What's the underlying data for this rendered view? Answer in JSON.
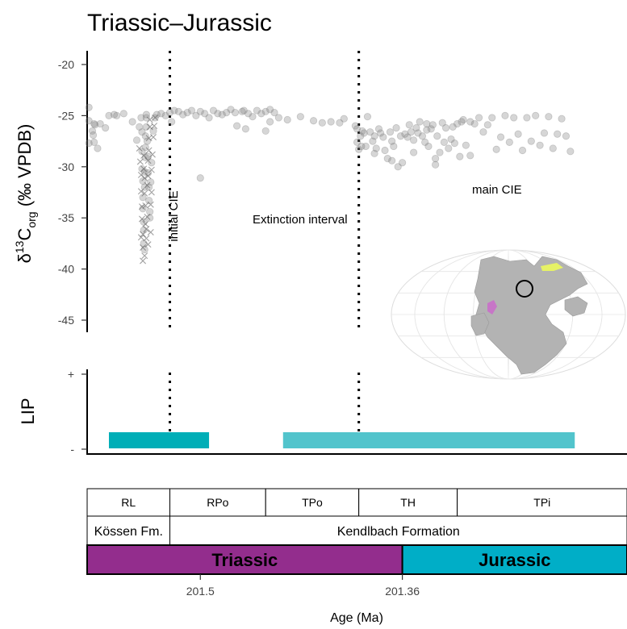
{
  "chart_data": {
    "type": "scatter",
    "title": "Triassic–Jurassic",
    "ylabel": {
      "delta": "δ",
      "sup": "13",
      "main": "C",
      "sub": "org",
      "unit": "(‰ VPDB)"
    },
    "xlabel": "Age (Ma)",
    "ylim": [
      -46,
      -19
    ],
    "yticks": [
      -20,
      -25,
      -30,
      -35,
      -40,
      -45
    ],
    "yticklabels": [
      "-20",
      "-25",
      "-30",
      "-35",
      "-40",
      "-45"
    ],
    "xticks": [
      201.5,
      201.36
    ],
    "xticklabels": [
      "201.5",
      "201.36"
    ],
    "grid": false,
    "annotations": {
      "initial_cie": "initial CIE",
      "extinction_interval": "Extinction interval",
      "main_cie": "main CIE"
    },
    "lip_panel": {
      "ylabel": "LIP",
      "yticklabels": [
        "+",
        "-"
      ]
    },
    "scatter_points": [
      [
        0.02,
        -24.2
      ],
      [
        0.02,
        -25.5
      ],
      [
        0.02,
        -27.7
      ],
      [
        0.06,
        -26.5
      ],
      [
        0.07,
        -26.9
      ],
      [
        0.08,
        -27.6
      ],
      [
        0.08,
        -25.8
      ],
      [
        0.09,
        -25.9
      ],
      [
        0.12,
        -28.2
      ],
      [
        0.15,
        -25.8
      ],
      [
        0.21,
        -26.2
      ],
      [
        0.25,
        -25.0
      ],
      [
        0.31,
        -24.9
      ],
      [
        0.34,
        -25.0
      ],
      [
        0.42,
        -24.8
      ],
      [
        0.52,
        -25.6
      ],
      [
        0.57,
        -27.4
      ],
      [
        0.6,
        -26.1
      ],
      [
        0.62,
        -25.2
      ],
      [
        0.63,
        -26.6
      ],
      [
        0.63,
        -28.5
      ],
      [
        0.63,
        -30.2
      ],
      [
        0.64,
        -31.4
      ],
      [
        0.64,
        -33.0
      ],
      [
        0.64,
        -34.1
      ],
      [
        0.65,
        -35.4
      ],
      [
        0.65,
        -36.2
      ],
      [
        0.65,
        -37.5
      ],
      [
        0.66,
        -38.1
      ],
      [
        0.66,
        -32.0
      ],
      [
        0.66,
        -30.5
      ],
      [
        0.67,
        -29.1
      ],
      [
        0.67,
        -28.1
      ],
      [
        0.67,
        -27.0
      ],
      [
        0.68,
        -26.1
      ],
      [
        0.68,
        -25.2
      ],
      [
        0.68,
        -24.9
      ],
      [
        0.69,
        -27.5
      ],
      [
        0.7,
        -29.0
      ],
      [
        0.7,
        -30.6
      ],
      [
        0.71,
        -32.0
      ],
      [
        0.71,
        -33.3
      ],
      [
        0.72,
        -34.4
      ],
      [
        0.72,
        -35.0
      ],
      [
        0.73,
        -31.5
      ],
      [
        0.74,
        -29.6
      ],
      [
        0.76,
        -26.5
      ],
      [
        0.78,
        -25.2
      ],
      [
        0.8,
        -24.9
      ],
      [
        0.85,
        -24.8
      ],
      [
        0.9,
        -25.0
      ],
      [
        0.95,
        -24.7
      ],
      [
        0.97,
        -25.6
      ],
      [
        1.0,
        -24.5
      ],
      [
        1.05,
        -24.6
      ],
      [
        1.1,
        -24.9
      ],
      [
        1.15,
        -24.7
      ],
      [
        1.2,
        -24.5
      ],
      [
        1.25,
        -25.0
      ],
      [
        1.3,
        -24.6
      ],
      [
        1.35,
        -24.8
      ],
      [
        1.4,
        -25.2
      ],
      [
        1.45,
        -24.5
      ],
      [
        1.5,
        -24.8
      ],
      [
        1.55,
        -24.9
      ],
      [
        1.6,
        -24.7
      ],
      [
        1.65,
        -24.4
      ],
      [
        1.7,
        -24.7
      ],
      [
        1.72,
        -26.0
      ],
      [
        1.78,
        -24.6
      ],
      [
        1.8,
        -24.5
      ],
      [
        1.85,
        -24.8
      ],
      [
        1.9,
        -25.1
      ],
      [
        1.95,
        -24.5
      ],
      [
        2.0,
        -24.8
      ],
      [
        2.05,
        -24.6
      ],
      [
        2.1,
        -24.4
      ],
      [
        2.15,
        -24.7
      ],
      [
        1.3,
        -31.1
      ],
      [
        1.82,
        -26.3
      ],
      [
        2.05,
        -26.5
      ],
      [
        2.1,
        -25.6
      ],
      [
        2.2,
        -25.2
      ],
      [
        2.3,
        -25.4
      ],
      [
        2.45,
        -25.1
      ],
      [
        2.6,
        -25.5
      ],
      [
        2.7,
        -25.7
      ],
      [
        2.8,
        -25.6
      ],
      [
        2.9,
        -25.7
      ],
      [
        2.95,
        -25.3
      ],
      [
        3.08,
        -26.0
      ],
      [
        3.1,
        -26.3
      ],
      [
        3.1,
        -27.6
      ],
      [
        3.12,
        -28.3
      ],
      [
        3.14,
        -27.0
      ],
      [
        3.16,
        -26.5
      ],
      [
        3.18,
        -26.7
      ],
      [
        3.2,
        -28.0
      ],
      [
        3.22,
        -25.1
      ],
      [
        3.25,
        -26.6
      ],
      [
        3.28,
        -27.5
      ],
      [
        3.3,
        -27.0
      ],
      [
        3.32,
        -28.2
      ],
      [
        3.35,
        -26.3
      ],
      [
        3.37,
        -26.7
      ],
      [
        3.4,
        -27.1
      ],
      [
        3.42,
        -28.4
      ],
      [
        3.45,
        -29.2
      ],
      [
        3.48,
        -26.6
      ],
      [
        3.5,
        -27.5
      ],
      [
        3.52,
        -28.0
      ],
      [
        3.55,
        -26.2
      ],
      [
        3.57,
        -30.0
      ],
      [
        3.6,
        -27.0
      ],
      [
        3.62,
        -29.6
      ],
      [
        3.65,
        -26.8
      ],
      [
        3.68,
        -27.1
      ],
      [
        3.7,
        -25.9
      ],
      [
        3.72,
        -26.6
      ],
      [
        3.75,
        -27.4
      ],
      [
        3.78,
        -26.2
      ],
      [
        3.8,
        -26.7
      ],
      [
        3.82,
        -25.6
      ],
      [
        3.85,
        -27.0
      ],
      [
        3.88,
        -27.6
      ],
      [
        3.9,
        -26.4
      ],
      [
        3.92,
        -28.0
      ],
      [
        3.95,
        -26.3
      ],
      [
        3.97,
        -25.9
      ],
      [
        4.0,
        -29.2
      ],
      [
        4.02,
        -27.0
      ],
      [
        4.05,
        -28.6
      ],
      [
        4.08,
        -25.7
      ],
      [
        4.1,
        -27.6
      ],
      [
        4.12,
        -26.2
      ],
      [
        4.15,
        -28.2
      ],
      [
        4.18,
        -27.3
      ],
      [
        4.2,
        -26.1
      ],
      [
        4.22,
        -27.7
      ],
      [
        4.25,
        -25.8
      ],
      [
        4.28,
        -29.0
      ],
      [
        4.3,
        -25.6
      ],
      [
        4.32,
        -25.4
      ],
      [
        4.35,
        -27.9
      ],
      [
        4.4,
        -25.6
      ],
      [
        4.45,
        -25.8
      ],
      [
        4.5,
        -25.2
      ],
      [
        4.55,
        -26.6
      ],
      [
        4.6,
        -25.9
      ],
      [
        4.65,
        -25.2
      ],
      [
        4.7,
        -28.3
      ],
      [
        4.75,
        -27.1
      ],
      [
        4.8,
        -25.0
      ],
      [
        4.85,
        -27.6
      ],
      [
        4.9,
        -25.2
      ],
      [
        4.95,
        -26.8
      ],
      [
        5.0,
        -28.4
      ],
      [
        5.05,
        -25.2
      ],
      [
        5.1,
        -27.5
      ],
      [
        5.15,
        -25.0
      ],
      [
        5.2,
        -27.9
      ],
      [
        5.25,
        -26.7
      ],
      [
        5.3,
        -25.1
      ],
      [
        5.35,
        -28.2
      ],
      [
        5.4,
        -26.8
      ],
      [
        5.45,
        -25.3
      ],
      [
        5.5,
        -27.0
      ],
      [
        5.55,
        -28.5
      ],
      [
        4.4,
        -28.9
      ],
      [
        4.0,
        -29.8
      ],
      [
        3.75,
        -28.6
      ],
      [
        3.5,
        -29.4
      ],
      [
        3.3,
        -28.7
      ],
      [
        3.15,
        -28.0
      ],
      [
        3.9,
        -25.8
      ]
    ],
    "cross_points": [
      [
        0.6,
        -28.2
      ],
      [
        0.61,
        -29.5
      ],
      [
        0.62,
        -30.8
      ],
      [
        0.62,
        -32.4
      ],
      [
        0.63,
        -33.9
      ],
      [
        0.63,
        -35.1
      ],
      [
        0.64,
        -36.6
      ],
      [
        0.64,
        -37.9
      ],
      [
        0.65,
        -30.2
      ],
      [
        0.65,
        -28.9
      ],
      [
        0.66,
        -31.1
      ],
      [
        0.66,
        -32.6
      ],
      [
        0.67,
        -33.8
      ],
      [
        0.67,
        -35.6
      ],
      [
        0.68,
        -37.0
      ],
      [
        0.68,
        -36.1
      ],
      [
        0.69,
        -34.9
      ],
      [
        0.69,
        -31.8
      ],
      [
        0.7,
        -30.9
      ],
      [
        0.7,
        -29.4
      ],
      [
        0.71,
        -28.4
      ],
      [
        0.71,
        -27.2
      ],
      [
        0.72,
        -26.1
      ],
      [
        0.72,
        -25.4
      ],
      [
        0.73,
        -33.7
      ],
      [
        0.73,
        -36.4
      ],
      [
        0.74,
        -32.5
      ],
      [
        0.74,
        -30.3
      ],
      [
        0.75,
        -28.8
      ],
      [
        0.76,
        -27.1
      ],
      [
        0.77,
        -26.0
      ],
      [
        0.78,
        -25.2
      ],
      [
        0.66,
        -38.7
      ],
      [
        0.64,
        -39.2
      ],
      [
        0.7,
        -37.6
      ],
      [
        0.62,
        -36.9
      ]
    ],
    "lip_bars": [
      {
        "x_start": 0.25,
        "x_end": 1.4,
        "color": "#00aeb7"
      },
      {
        "x_start": 2.25,
        "x_end": 5.6,
        "color": "#52c4cc"
      }
    ],
    "boundaries": [
      0.95,
      3.12
    ],
    "strat_rows": {
      "zones": [
        {
          "label": "RL",
          "x_start": 0,
          "x_end": 0.95
        },
        {
          "label": "RPo",
          "x_start": 0.95,
          "x_end": 2.05
        },
        {
          "label": "TPo",
          "x_start": 2.05,
          "x_end": 3.12
        },
        {
          "label": "TH",
          "x_start": 3.12,
          "x_end": 4.25
        },
        {
          "label": "TPi",
          "x_start": 4.25,
          "x_end": 6.2
        }
      ],
      "formations": [
        {
          "label": "Kössen Fm.",
          "x_start": 0,
          "x_end": 0.95
        },
        {
          "label": "Kendlbach Formation",
          "x_start": 0.95,
          "x_end": 6.2
        }
      ],
      "periods": [
        {
          "label": "Triassic",
          "x_start": 0,
          "x_end": 3.62,
          "color": "#932d8d"
        },
        {
          "label": "Jurassic",
          "x_start": 3.62,
          "x_end": 6.2,
          "color": "#00aec7"
        }
      ]
    },
    "colors": {
      "points": "#7f7f7f",
      "boundary_line": "#000000",
      "map_land": "#b3b3b3",
      "map_ocean": "#ffffff",
      "map_marker": "#000000",
      "map_highlight": "#e6f266",
      "map_lip": "#cc66cc"
    }
  }
}
